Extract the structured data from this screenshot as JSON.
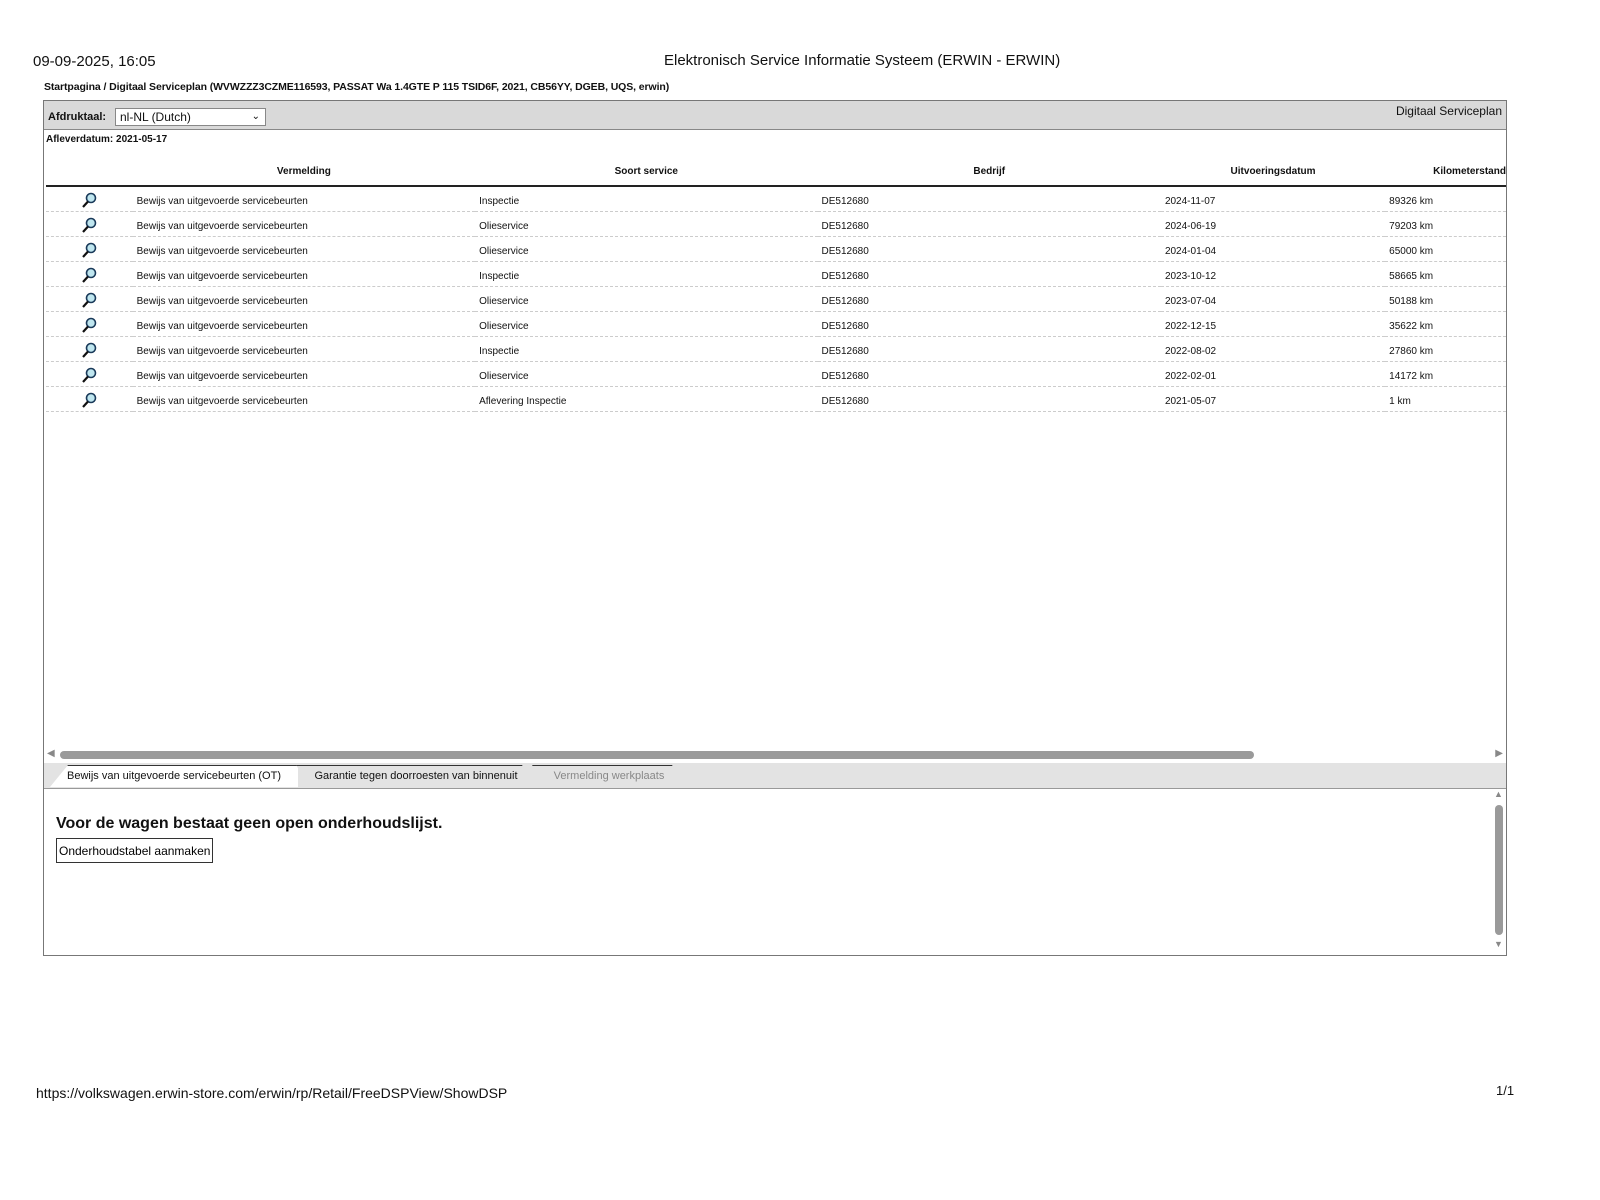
{
  "header": {
    "timestamp": "09-09-2025, 16:05",
    "title": "Elektronisch Service Informatie Systeem (ERWIN - ERWIN)"
  },
  "breadcrumb": "Startpagina / Digitaal Serviceplan (WVWZZZ3CZME116593, PASSAT Wa 1.4GTE P 115 TSID6F, 2021, CB56YY, DGEB, UQS, erwin)",
  "toolbar": {
    "language_label": "Afdruktaal:",
    "language_value": "nl-NL (Dutch)",
    "section_title": "Digitaal Serviceplan"
  },
  "delivery_date": "Afleverdatum: 2021-05-17",
  "table": {
    "columns": [
      "",
      "Vermelding",
      "Soort service",
      "Bedrijf",
      "Uitvoeringsdatum",
      "Kilometerstand"
    ],
    "rows": [
      [
        "Bewijs van uitgevoerde servicebeurten",
        "Inspectie",
        "DE512680",
        "2024-11-07",
        "89326 km"
      ],
      [
        "Bewijs van uitgevoerde servicebeurten",
        "Olieservice",
        "DE512680",
        "2024-06-19",
        "79203 km"
      ],
      [
        "Bewijs van uitgevoerde servicebeurten",
        "Olieservice",
        "DE512680",
        "2024-01-04",
        "65000 km"
      ],
      [
        "Bewijs van uitgevoerde servicebeurten",
        "Inspectie",
        "DE512680",
        "2023-10-12",
        "58665 km"
      ],
      [
        "Bewijs van uitgevoerde servicebeurten",
        "Olieservice",
        "DE512680",
        "2023-07-04",
        "50188 km"
      ],
      [
        "Bewijs van uitgevoerde servicebeurten",
        "Olieservice",
        "DE512680",
        "2022-12-15",
        "35622 km"
      ],
      [
        "Bewijs van uitgevoerde servicebeurten",
        "Inspectie",
        "DE512680",
        "2022-08-02",
        "27860 km"
      ],
      [
        "Bewijs van uitgevoerde servicebeurten",
        "Olieservice",
        "DE512680",
        "2022-02-01",
        "14172 km"
      ],
      [
        "Bewijs van uitgevoerde servicebeurten",
        "Aflevering Inspectie",
        "DE512680",
        "2021-05-07",
        "1 km"
      ]
    ]
  },
  "tabs": [
    "Bewijs van uitgevoerde servicebeurten (OT)",
    "Garantie tegen doorroesten van binnenuit",
    "Vermelding werkplaats"
  ],
  "panel": {
    "message": "Voor de wagen bestaat geen open onderhoudslijst.",
    "button": "Onderhoudstabel aanmaken"
  },
  "footer": {
    "url": "https://volkswagen.erwin-store.com/erwin/rp/Retail/FreeDSPView/ShowDSP",
    "page": "1/1"
  },
  "icons": {
    "row_icon": "magnifier-icon"
  }
}
